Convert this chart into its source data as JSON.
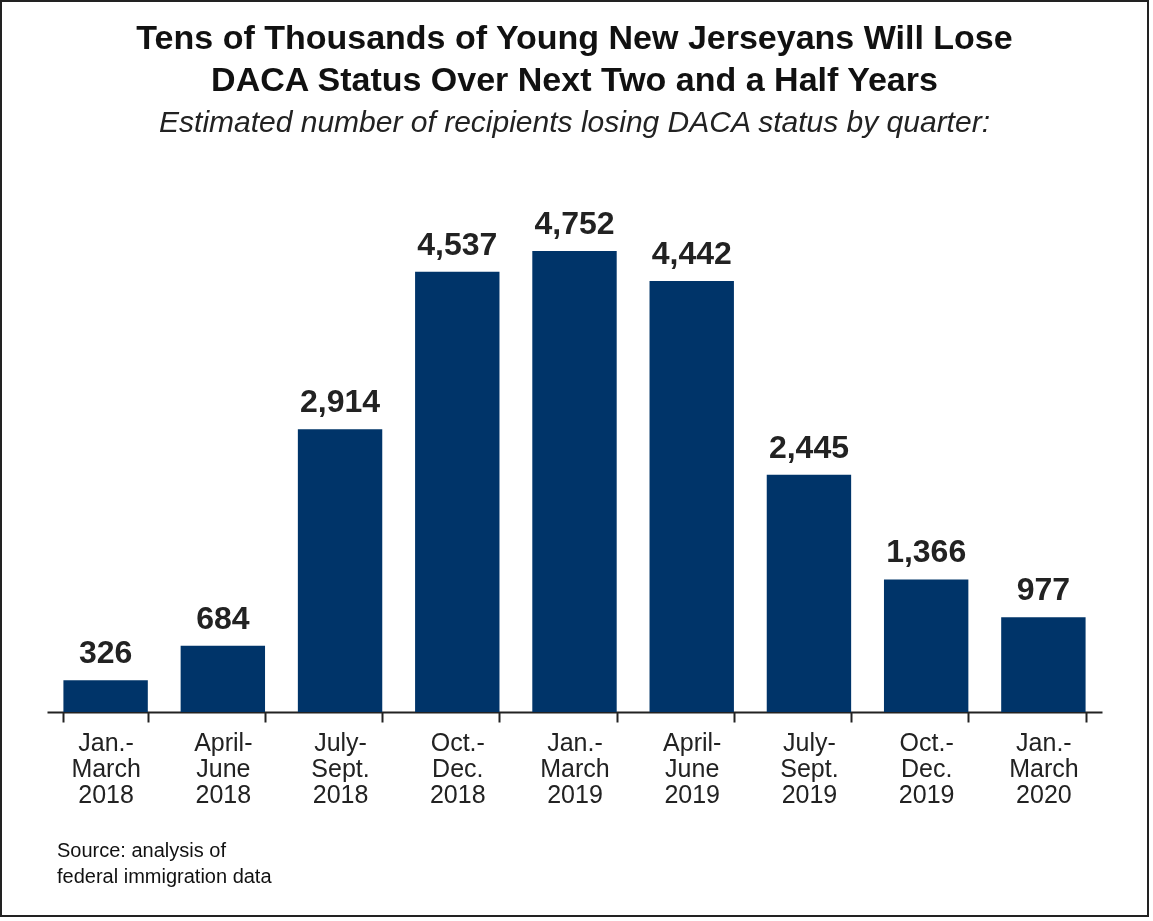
{
  "chart_data": {
    "type": "bar",
    "title": "Tens of Thousands of Young New Jerseyans Will Lose\nDACA Status Over Next Two and a Half Years",
    "subtitle": "Estimated number of recipients losing DACA status by quarter:",
    "categories": [
      "Jan.-\nMarch\n2018",
      "April-\nJune\n2018",
      "July-\nSept.\n2018",
      "Oct.-\nDec.\n2018",
      "Jan.-\nMarch\n2019",
      "April-\nJune\n2019",
      "July-\nSept.\n2019",
      "Oct.-\nDec.\n2019",
      "Jan.-\nMarch\n2020"
    ],
    "values": [
      326,
      684,
      2914,
      4537,
      4752,
      4442,
      2445,
      1366,
      977
    ],
    "value_labels": [
      "326",
      "684",
      "2,914",
      "4,537",
      "4,752",
      "4,442",
      "2,445",
      "1,366",
      "977"
    ],
    "color": "#003469",
    "annotations": [
      "Source: analysis of\nfederal immigration data"
    ]
  }
}
